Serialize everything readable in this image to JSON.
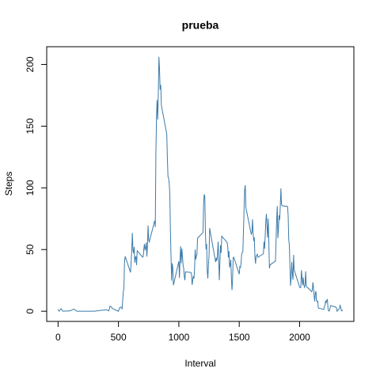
{
  "chart_data": {
    "type": "line",
    "title": "prueba",
    "xlabel": "Interval",
    "ylabel": "Steps",
    "x": [
      0,
      5,
      10,
      25,
      40,
      100,
      130,
      155,
      200,
      230,
      300,
      330,
      400,
      420,
      430,
      440,
      450,
      500,
      510,
      520,
      530,
      540,
      545,
      550,
      555,
      600,
      610,
      615,
      620,
      625,
      630,
      635,
      640,
      645,
      650,
      655,
      700,
      705,
      710,
      715,
      720,
      725,
      730,
      735,
      740,
      745,
      750,
      755,
      800,
      805,
      810,
      815,
      820,
      825,
      830,
      835,
      840,
      845,
      850,
      855,
      900,
      905,
      910,
      915,
      920,
      925,
      930,
      935,
      940,
      945,
      950,
      955,
      1000,
      1005,
      1010,
      1015,
      1020,
      1025,
      1030,
      1035,
      1040,
      1045,
      1050,
      1055,
      1100,
      1105,
      1110,
      1115,
      1120,
      1125,
      1130,
      1135,
      1140,
      1145,
      1150,
      1155,
      1200,
      1205,
      1210,
      1215,
      1220,
      1225,
      1230,
      1235,
      1240,
      1245,
      1250,
      1255,
      1300,
      1305,
      1310,
      1315,
      1320,
      1325,
      1330,
      1335,
      1340,
      1345,
      1350,
      1355,
      1400,
      1405,
      1410,
      1415,
      1420,
      1425,
      1430,
      1435,
      1440,
      1445,
      1450,
      1455,
      1500,
      1505,
      1510,
      1515,
      1520,
      1525,
      1530,
      1535,
      1540,
      1545,
      1550,
      1555,
      1600,
      1605,
      1610,
      1615,
      1620,
      1625,
      1630,
      1635,
      1640,
      1645,
      1650,
      1655,
      1700,
      1705,
      1710,
      1715,
      1720,
      1725,
      1730,
      1735,
      1740,
      1745,
      1750,
      1755,
      1800,
      1805,
      1810,
      1815,
      1820,
      1825,
      1830,
      1835,
      1840,
      1845,
      1850,
      1855,
      1900,
      1905,
      1910,
      1915,
      1920,
      1925,
      1930,
      1935,
      1940,
      1945,
      1950,
      1955,
      2000,
      2005,
      2010,
      2015,
      2020,
      2025,
      2030,
      2035,
      2040,
      2045,
      2050,
      2055,
      2100,
      2105,
      2110,
      2115,
      2120,
      2125,
      2130,
      2135,
      2140,
      2145,
      2150,
      2155,
      2200,
      2205,
      2210,
      2215,
      2220,
      2225,
      2230,
      2235,
      2240,
      2245,
      2250,
      2255,
      2300,
      2305,
      2310,
      2315,
      2320,
      2325,
      2330,
      2335,
      2340,
      2345,
      2350,
      2355
    ],
    "series": [
      {
        "color": "#3b7bab",
        "values": [
          1.7,
          0.3,
          0.1,
          2.1,
          0,
          0.3,
          1.8,
          0,
          0,
          0,
          0,
          0.4,
          1.2,
          0.3,
          4.1,
          3.5,
          2.2,
          0,
          3.0,
          3.3,
          2.0,
          16,
          18.3,
          39.5,
          44.5,
          31.5,
          49.3,
          63.5,
          50.0,
          47.1,
          52.2,
          39.3,
          44.0,
          44.2,
          37.4,
          49.0,
          43.8,
          44.4,
          50.5,
          54.5,
          49.9,
          51.0,
          55.7,
          44.3,
          52.3,
          69.5,
          57.8,
          56.2,
          73.4,
          68.2,
          129.4,
          157.5,
          171.2,
          155.4,
          177.3,
          206.2,
          195.9,
          179.6,
          183.4,
          167.0,
          143.5,
          124.0,
          109.1,
          108.1,
          103.7,
          96.0,
          66.2,
          45.2,
          24.8,
          38.8,
          35.0,
          21.1,
          40.6,
          27.0,
          42.4,
          52.7,
          38.9,
          50.8,
          44.3,
          37.4,
          34.7,
          28.3,
          25.1,
          31.9,
          31.4,
          29.7,
          21.3,
          25.5,
          28.4,
          26.5,
          33.4,
          50.0,
          42.0,
          44.6,
          46.0,
          59.2,
          63.9,
          87.7,
          94.8,
          92.8,
          63.4,
          50.2,
          54.5,
          32.4,
          26.5,
          37.7,
          45.1,
          67.3,
          42.3,
          39.9,
          43.3,
          41.0,
          46.2,
          56.4,
          42.8,
          25.1,
          40.0,
          53.5,
          47.3,
          60.8,
          55.8,
          52.0,
          43.6,
          48.7,
          35.5,
          37.5,
          41.8,
          27.5,
          17.1,
          26.1,
          43.6,
          43.8,
          30.0,
          36.1,
          35.5,
          38.8,
          46.0,
          47.8,
          48.1,
          65.3,
          82.9,
          98.7,
          102.1,
          84.0,
          62.1,
          64.1,
          74.5,
          63.2,
          56.9,
          59.8,
          43.9,
          38.6,
          44.7,
          45.5,
          46.2,
          43.7,
          46.6,
          56.3,
          50.7,
          61.2,
          73.0,
          78.9,
          68.9,
          59.7,
          75.1,
          56.5,
          34.8,
          37.5,
          40.7,
          58.0,
          74.7,
          85.3,
          59.3,
          67.8,
          77.7,
          74.2,
          85.3,
          99.5,
          86.6,
          85.6,
          84.9,
          77.8,
          58.0,
          53.4,
          36.3,
          20.7,
          27.4,
          40.0,
          30.2,
          25.5,
          45.7,
          33.5,
          19.6,
          19.0,
          19.3,
          33.3,
          26.8,
          21.2,
          27.3,
          21.3,
          19.5,
          21.3,
          32.3,
          20.2,
          15.9,
          17.2,
          23.5,
          19.2,
          12.5,
          8.0,
          14.7,
          16.3,
          8.7,
          7.8,
          8.1,
          2.6,
          1.5,
          3.7,
          4.8,
          8.5,
          7.1,
          8.7,
          9.8,
          2.2,
          0.3,
          0.1,
          1.6,
          4.6,
          3.3,
          2.8,
          0,
          0.8,
          1.0,
          1.6,
          2.6,
          4.7,
          3.3,
          0.6,
          0.2,
          1.1
        ]
      }
    ],
    "xlim": [
      -94.2,
      2449.2
    ],
    "ylim": [
      -8.25,
      214.4
    ],
    "xticks": [
      0,
      500,
      1000,
      1500,
      2000
    ],
    "yticks": [
      0,
      50,
      100,
      150,
      200
    ]
  }
}
